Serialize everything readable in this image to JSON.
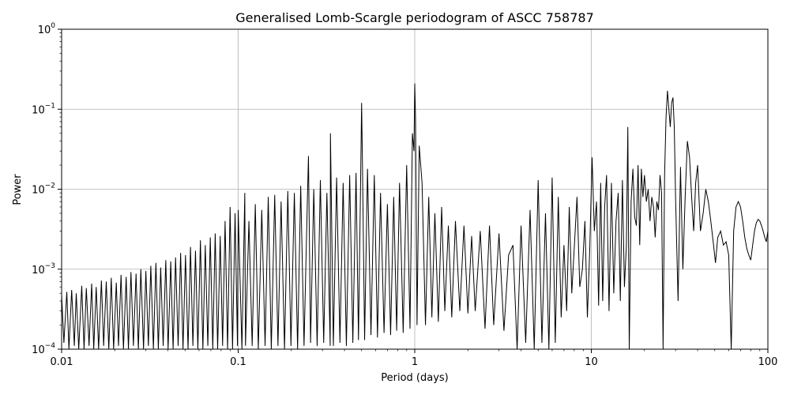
{
  "chart_data": {
    "type": "line",
    "title": "Generalised Lomb-Scargle periodogram of ASCC 758787",
    "xlabel": "Period (days)",
    "ylabel": "Power",
    "x_scale": "log",
    "y_scale": "log",
    "xlim": [
      0.01,
      100
    ],
    "ylim": [
      0.0001,
      1
    ],
    "grid": true,
    "x_ticks": [
      {
        "value": 0.01,
        "label": "0.01"
      },
      {
        "value": 0.1,
        "label": "0.1"
      },
      {
        "value": 1,
        "label": "1"
      },
      {
        "value": 10,
        "label": "10"
      },
      {
        "value": 100,
        "label": "100"
      }
    ],
    "y_ticks": [
      {
        "value": 0.0001,
        "base": "10",
        "exp": "−4"
      },
      {
        "value": 0.001,
        "base": "10",
        "exp": "−3"
      },
      {
        "value": 0.01,
        "base": "10",
        "exp": "−2"
      },
      {
        "value": 0.1,
        "base": "10",
        "exp": "−1"
      },
      {
        "value": 1,
        "base": "10",
        "exp": "0"
      }
    ],
    "line_color": "#000000",
    "grid_color": "#b0b0b0",
    "series": [
      {
        "period_days": [
          0.01,
          0.0103,
          0.0107,
          0.011,
          0.0114,
          0.0118,
          0.0121,
          0.0125,
          0.013,
          0.0134,
          0.0138,
          0.0143,
          0.0148,
          0.0152,
          0.0157,
          0.0162,
          0.0168,
          0.0173,
          0.0179,
          0.0185,
          0.0191,
          0.0197,
          0.0204,
          0.021,
          0.0217,
          0.0224,
          0.0232,
          0.0239,
          0.0247,
          0.0255,
          0.0264,
          0.0272,
          0.0281,
          0.0291,
          0.03,
          0.031,
          0.032,
          0.0331,
          0.0342,
          0.0353,
          0.0364,
          0.0376,
          0.0389,
          0.0401,
          0.0415,
          0.0428,
          0.0442,
          0.0457,
          0.0472,
          0.0487,
          0.0503,
          0.052,
          0.0537,
          0.0554,
          0.0573,
          0.0591,
          0.0611,
          0.0631,
          0.0651,
          0.0673,
          0.0695,
          0.0718,
          0.0741,
          0.0765,
          0.0791,
          0.0816,
          0.0843,
          0.0871,
          0.09,
          0.0929,
          0.096,
          0.0991,
          0.1,
          0.105,
          0.109,
          0.11,
          0.115,
          0.12,
          0.125,
          0.13,
          0.136,
          0.142,
          0.148,
          0.154,
          0.161,
          0.168,
          0.175,
          0.183,
          0.191,
          0.199,
          0.208,
          0.217,
          0.226,
          0.236,
          0.246,
          0.25,
          0.257,
          0.268,
          0.28,
          0.292,
          0.305,
          0.318,
          0.332,
          0.333,
          0.346,
          0.361,
          0.377,
          0.393,
          0.41,
          0.428,
          0.446,
          0.465,
          0.48,
          0.495,
          0.5,
          0.505,
          0.52,
          0.54,
          0.565,
          0.59,
          0.615,
          0.64,
          0.67,
          0.7,
          0.73,
          0.76,
          0.79,
          0.82,
          0.86,
          0.9,
          0.94,
          0.97,
          0.99,
          1.0,
          1.01,
          1.03,
          1.06,
          1.1,
          1.15,
          1.2,
          1.25,
          1.3,
          1.36,
          1.42,
          1.48,
          1.55,
          1.62,
          1.7,
          1.8,
          1.9,
          2.0,
          2.1,
          2.2,
          2.35,
          2.5,
          2.65,
          2.8,
          3.0,
          3.2,
          3.4,
          3.6,
          3.8,
          4.0,
          4.25,
          4.5,
          4.75,
          5.0,
          5.25,
          5.5,
          5.75,
          6.0,
          6.25,
          6.5,
          6.75,
          7.0,
          7.25,
          7.5,
          7.75,
          8.0,
          8.3,
          8.6,
          8.9,
          9.2,
          9.5,
          9.8,
          10.1,
          10.4,
          10.7,
          11.0,
          11.3,
          11.6,
          11.9,
          12.2,
          12.6,
          13.0,
          13.4,
          13.8,
          14.2,
          14.6,
          15.0,
          15.4,
          15.8,
          16.1,
          16.4,
          16.8,
          17.2,
          17.6,
          18.0,
          18.4,
          18.8,
          19.2,
          19.6,
          20.0,
          20.5,
          21.0,
          21.5,
          22.0,
          22.5,
          23.0,
          23.5,
          24.0,
          24.5,
          25.0,
          25.5,
          26.0,
          26.5,
          27.0,
          27.5,
          28.0,
          28.5,
          29.0,
          29.5,
          30.0,
          31.0,
          32.0,
          33.0,
          34.0,
          35.0,
          36.0,
          37.0,
          38.0,
          39.0,
          40.0,
          41.5,
          43.0,
          44.5,
          46.0,
          47.5,
          49.0,
          50.5,
          52.0,
          54.0,
          56.0,
          58.0,
          60.0,
          62.0,
          64.0,
          66.0,
          68.0,
          70.0,
          72.0,
          74.0,
          76.0,
          78.0,
          80.0,
          82.0,
          84.0,
          86.0,
          88.0,
          90.0,
          92.0,
          94.0,
          96.0,
          98.0,
          100.0
        ],
        "power": [
          0.00048,
          0.00012,
          0.00052,
          0.0001,
          0.00055,
          0.00011,
          0.0005,
          0.0001,
          0.00062,
          0.0001,
          0.00058,
          0.00011,
          0.00066,
          0.0001,
          0.0006,
          0.0001,
          0.00072,
          0.00011,
          0.0007,
          0.0001,
          0.00078,
          0.0001,
          0.00068,
          0.00011,
          0.00085,
          0.0001,
          0.0008,
          0.0001,
          0.00092,
          0.00011,
          0.00088,
          0.0001,
          0.001,
          0.0001,
          0.00095,
          0.00011,
          0.0011,
          0.0001,
          0.0012,
          0.0001,
          0.00105,
          0.00011,
          0.0013,
          0.0001,
          0.00125,
          0.0001,
          0.0014,
          0.00011,
          0.0016,
          0.0001,
          0.0015,
          0.0001,
          0.0019,
          0.00011,
          0.0017,
          0.0001,
          0.0023,
          0.0001,
          0.002,
          0.00011,
          0.0025,
          0.0001,
          0.0028,
          0.0001,
          0.0026,
          0.00011,
          0.004,
          0.0001,
          0.006,
          0.0001,
          0.005,
          0.00011,
          0.0055,
          0.0001,
          0.009,
          0.00011,
          0.004,
          0.00011,
          0.0065,
          0.0001,
          0.0055,
          0.00011,
          0.008,
          0.0001,
          0.0085,
          0.00011,
          0.007,
          0.0001,
          0.0095,
          0.00011,
          0.009,
          0.0001,
          0.011,
          0.00011,
          0.006,
          0.026,
          0.00012,
          0.01,
          0.00011,
          0.013,
          0.00012,
          0.009,
          0.00011,
          0.05,
          0.00011,
          0.014,
          0.00012,
          0.012,
          0.00011,
          0.015,
          0.00012,
          0.016,
          0.00013,
          0.02,
          0.12,
          0.025,
          0.00013,
          0.018,
          0.00015,
          0.015,
          0.00014,
          0.009,
          0.00016,
          0.0065,
          0.00015,
          0.008,
          0.00017,
          0.012,
          0.00016,
          0.02,
          0.00018,
          0.05,
          0.03,
          0.21,
          0.08,
          0.0002,
          0.035,
          0.012,
          0.0002,
          0.008,
          0.00025,
          0.005,
          0.00022,
          0.006,
          0.0003,
          0.0035,
          0.00025,
          0.004,
          0.0003,
          0.0035,
          0.00028,
          0.0026,
          0.0003,
          0.003,
          0.00018,
          0.0035,
          0.0002,
          0.0028,
          0.00017,
          0.0015,
          0.002,
          0.0001,
          0.0035,
          0.00012,
          0.0055,
          0.0001,
          0.013,
          0.00012,
          0.005,
          0.0001,
          0.014,
          0.00012,
          0.008,
          0.00025,
          0.002,
          0.0003,
          0.006,
          0.0005,
          0.0018,
          0.008,
          0.0006,
          0.001,
          0.004,
          0.00025,
          0.0018,
          0.025,
          0.003,
          0.007,
          0.00035,
          0.012,
          0.0004,
          0.006,
          0.015,
          0.0003,
          0.012,
          0.0005,
          0.004,
          0.009,
          0.0004,
          0.013,
          0.0006,
          0.002,
          0.06,
          0.0001,
          0.007,
          0.018,
          0.0045,
          0.0035,
          0.02,
          0.002,
          0.018,
          0.008,
          0.015,
          0.007,
          0.01,
          0.004,
          0.008,
          0.006,
          0.0025,
          0.007,
          0.0055,
          0.015,
          0.009,
          0.0001,
          0.015,
          0.08,
          0.17,
          0.1,
          0.06,
          0.12,
          0.14,
          0.06,
          0.008,
          0.0004,
          0.019,
          0.001,
          0.008,
          0.04,
          0.025,
          0.008,
          0.003,
          0.012,
          0.02,
          0.003,
          0.005,
          0.01,
          0.007,
          0.004,
          0.0022,
          0.0012,
          0.0025,
          0.003,
          0.002,
          0.0022,
          0.0015,
          0.0001,
          0.003,
          0.006,
          0.007,
          0.006,
          0.004,
          0.0025,
          0.0018,
          0.0015,
          0.0013,
          0.002,
          0.003,
          0.0038,
          0.0042,
          0.004,
          0.0035,
          0.003,
          0.0025,
          0.0022,
          0.003
        ]
      }
    ]
  }
}
